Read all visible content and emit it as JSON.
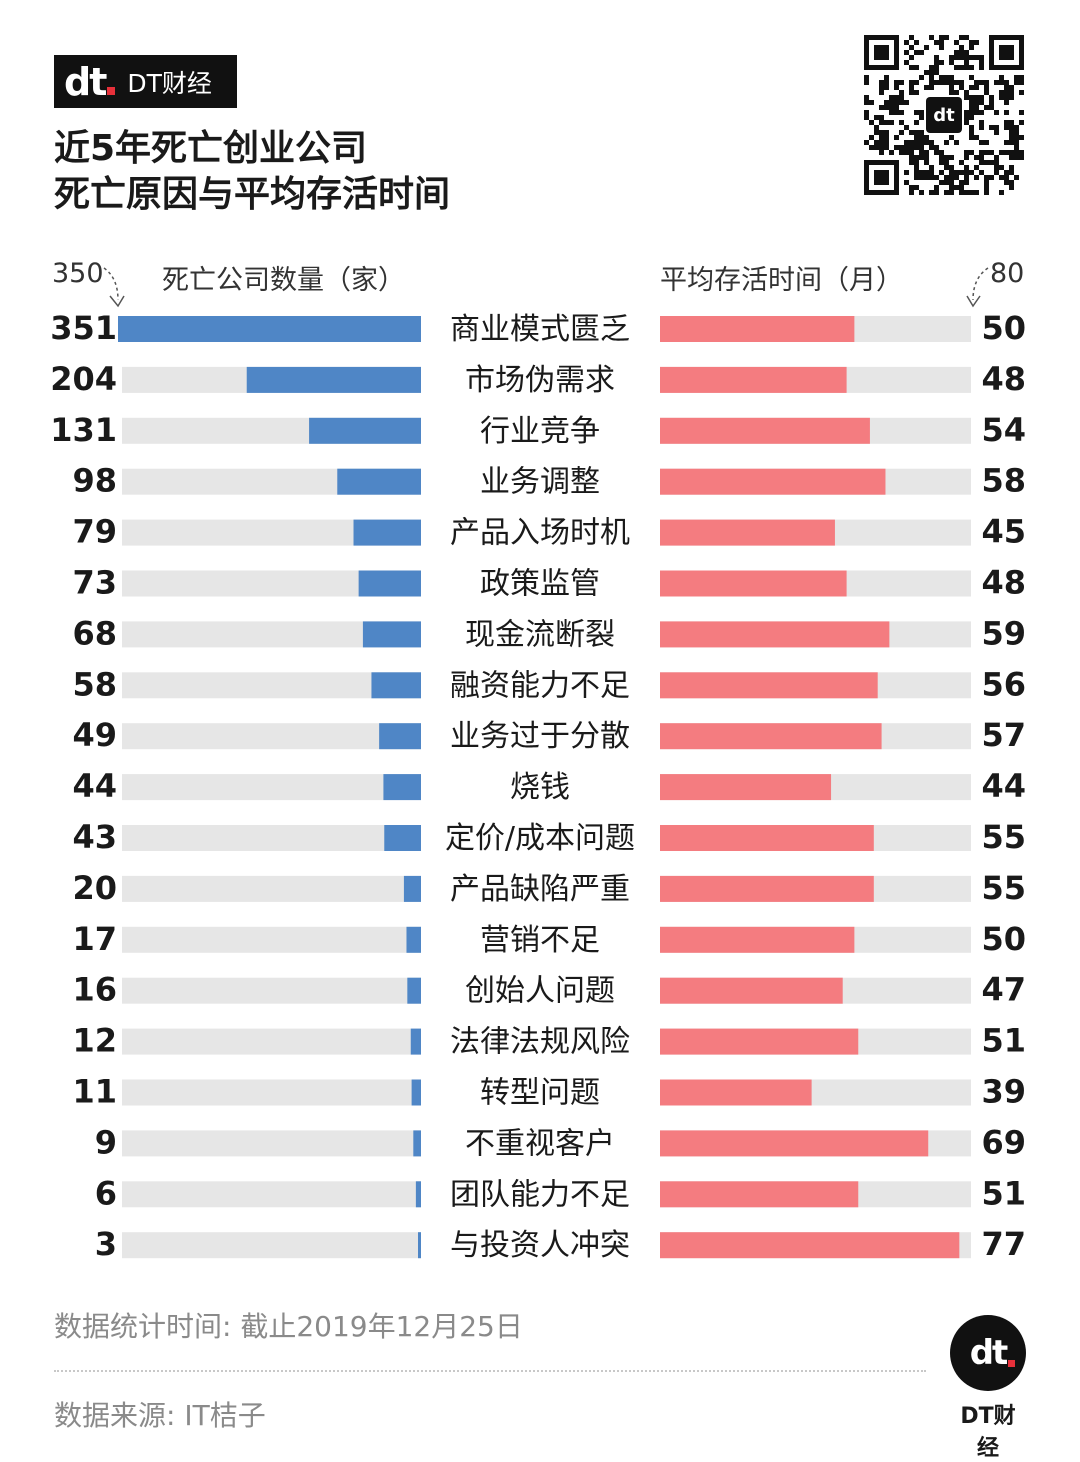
{
  "brand": {
    "mark": "dt",
    "name": "DT财经"
  },
  "title": {
    "line1": "近5年死亡创业公司",
    "line2": "死亡原因与平均存活时间"
  },
  "colors": {
    "left_bar": "#4f86c6",
    "right_bar": "#f47c80",
    "track": "#e6e6e6"
  },
  "chart_data": {
    "type": "bar",
    "left_series": {
      "name": "死亡公司数量（家）",
      "axis_max": 350,
      "axis_max_label": "350",
      "values": [
        351,
        204,
        131,
        98,
        79,
        73,
        68,
        58,
        49,
        44,
        43,
        20,
        17,
        16,
        12,
        11,
        9,
        6,
        3
      ]
    },
    "right_series": {
      "name": "平均存活时间（月）",
      "axis_max": 80,
      "axis_max_label": "80",
      "values": [
        50,
        48,
        54,
        58,
        45,
        48,
        59,
        56,
        57,
        44,
        55,
        55,
        50,
        47,
        51,
        39,
        69,
        51,
        77
      ]
    },
    "categories": [
      "商业模式匮乏",
      "市场伪需求",
      "行业竞争",
      "业务调整",
      "产品入场时机",
      "政策监管",
      "现金流断裂",
      "融资能力不足",
      "业务过于分散",
      "烧钱",
      "定价/成本问题",
      "产品缺陷严重",
      "营销不足",
      "创始人问题",
      "法律法规风险",
      "转型问题",
      "不重视客户",
      "团队能力不足",
      "与投资人冲突"
    ]
  },
  "footer": {
    "time": "数据统计时间: 截止2019年12月25日",
    "source": "数据来源: IT桔子"
  },
  "logo": {
    "mark": "dt",
    "name": "DT财经"
  },
  "qr_icon": "qr-code-icon"
}
